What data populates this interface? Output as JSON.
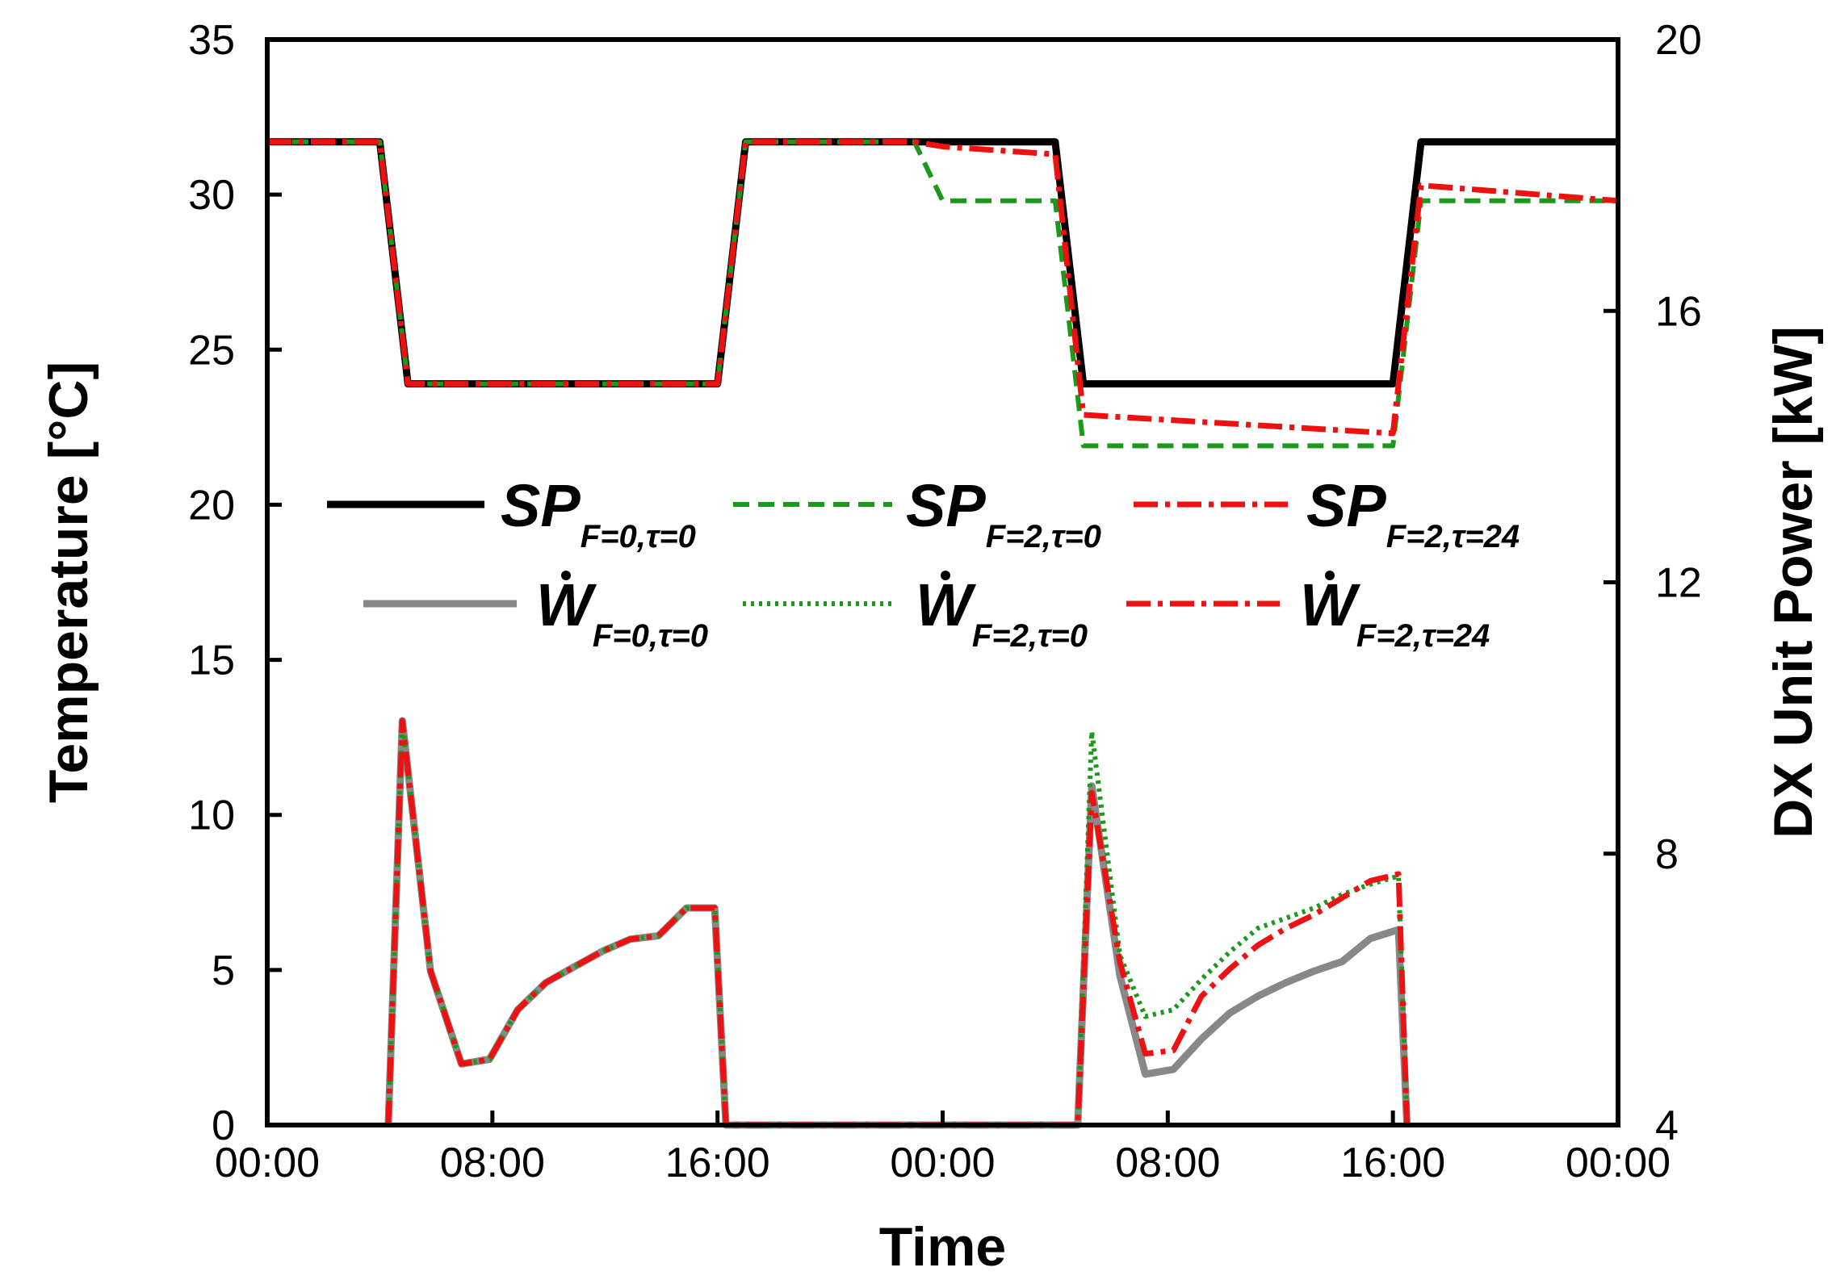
{
  "chart_data": {
    "type": "line",
    "xlabel": "Time",
    "ylabel": "Temperature [°C]",
    "y2label": "DX Unit Power [kW]",
    "xlim": [
      0,
      48
    ],
    "ylim": [
      0,
      35
    ],
    "y2lim": [
      4,
      20
    ],
    "x_ticks": [
      0,
      8,
      16,
      24,
      32,
      40,
      48
    ],
    "x_tick_labels": [
      "00:00",
      "08:00",
      "16:00",
      "00:00",
      "08:00",
      "16:00",
      "00:00"
    ],
    "y_ticks": [
      0,
      5,
      10,
      15,
      20,
      25,
      30,
      35
    ],
    "y_tick_labels": [
      "0",
      "5",
      "10",
      "15",
      "20",
      "25",
      "30",
      "35"
    ],
    "y2_ticks": [
      4,
      8,
      12,
      16,
      20
    ],
    "y2_tick_labels": [
      "4",
      "8",
      "12",
      "16",
      "20"
    ],
    "legend": {
      "placement": "center-left, two rows",
      "entries": [
        {
          "series": "sp_f0_t0",
          "main": "SP",
          "sub": "F=0,τ=0"
        },
        {
          "series": "sp_f2_t0",
          "main": "SP",
          "sub": "F=2,τ=0"
        },
        {
          "series": "sp_f2_t24",
          "main": "SP",
          "sub": "F=2,τ=24"
        },
        {
          "series": "w_f0_t0",
          "main": "W",
          "sub": "F=0,τ=0"
        },
        {
          "series": "w_f2_t0",
          "main": "W",
          "sub": "F=2,τ=0"
        },
        {
          "series": "w_f2_t24",
          "main": "W",
          "sub": "F=2,τ=24"
        }
      ]
    },
    "series": [
      {
        "id": "w_f0_t0",
        "name": "W F=0,τ=0",
        "axis": "right",
        "color": "#888888",
        "style": "solid-thick",
        "points": [
          [
            4.3,
            4
          ],
          [
            4.8,
            9.96
          ],
          [
            5.8,
            6.27
          ],
          [
            6.9,
            4.9
          ],
          [
            7.9,
            4.97
          ],
          [
            8.9,
            5.7
          ],
          [
            9.9,
            6.1
          ],
          [
            10.9,
            6.33
          ],
          [
            11.9,
            6.56
          ],
          [
            12.9,
            6.74
          ],
          [
            13.9,
            6.79
          ],
          [
            14.9,
            7.2
          ],
          [
            15.9,
            7.2
          ],
          [
            16.3,
            4
          ],
          [
            28.8,
            4
          ],
          [
            29.3,
            9
          ],
          [
            30.3,
            6.2
          ],
          [
            31.2,
            4.75
          ],
          [
            32.2,
            4.82
          ],
          [
            33.2,
            5.27
          ],
          [
            34.2,
            5.65
          ],
          [
            35.2,
            5.9
          ],
          [
            36.2,
            6.1
          ],
          [
            37.2,
            6.27
          ],
          [
            38.2,
            6.41
          ],
          [
            39.2,
            6.75
          ],
          [
            40.2,
            6.88
          ],
          [
            40.5,
            4
          ]
        ]
      },
      {
        "id": "w_f2_t0",
        "name": "W F=2,τ=0",
        "axis": "right",
        "color": "#1a9a1a",
        "style": "dotted",
        "points": [
          [
            4.3,
            4
          ],
          [
            4.8,
            9.96
          ],
          [
            5.8,
            6.27
          ],
          [
            6.9,
            4.9
          ],
          [
            7.9,
            4.97
          ],
          [
            8.9,
            5.7
          ],
          [
            9.9,
            6.1
          ],
          [
            10.9,
            6.33
          ],
          [
            11.9,
            6.56
          ],
          [
            12.9,
            6.74
          ],
          [
            13.9,
            6.79
          ],
          [
            14.9,
            7.2
          ],
          [
            15.9,
            7.2
          ],
          [
            16.3,
            4
          ],
          [
            28.8,
            4
          ],
          [
            29.3,
            9.8
          ],
          [
            30.3,
            6.5
          ],
          [
            31.2,
            5.6
          ],
          [
            32.2,
            5.7
          ],
          [
            33.2,
            6.15
          ],
          [
            34.2,
            6.55
          ],
          [
            35.2,
            6.9
          ],
          [
            36.2,
            7.05
          ],
          [
            37.2,
            7.2
          ],
          [
            38.2,
            7.4
          ],
          [
            39.2,
            7.55
          ],
          [
            40.2,
            7.67
          ],
          [
            40.5,
            4
          ]
        ]
      },
      {
        "id": "w_f2_t24",
        "name": "W F=2,τ=24",
        "axis": "right",
        "color": "#ee1111",
        "style": "dash-dot",
        "points": [
          [
            4.3,
            4
          ],
          [
            4.8,
            9.96
          ],
          [
            5.8,
            6.27
          ],
          [
            6.9,
            4.9
          ],
          [
            7.9,
            4.97
          ],
          [
            8.9,
            5.7
          ],
          [
            9.9,
            6.1
          ],
          [
            10.9,
            6.33
          ],
          [
            11.9,
            6.56
          ],
          [
            12.9,
            6.74
          ],
          [
            13.9,
            6.79
          ],
          [
            14.9,
            7.2
          ],
          [
            15.9,
            7.2
          ],
          [
            16.3,
            4
          ],
          [
            28.8,
            4
          ],
          [
            29.3,
            8.9
          ],
          [
            30.3,
            6.4
          ],
          [
            31.2,
            5.05
          ],
          [
            32.2,
            5.1
          ],
          [
            33.2,
            5.9
          ],
          [
            34.2,
            6.3
          ],
          [
            35.2,
            6.65
          ],
          [
            36.2,
            6.9
          ],
          [
            37.2,
            7.1
          ],
          [
            38.2,
            7.35
          ],
          [
            39.2,
            7.6
          ],
          [
            40.2,
            7.7
          ],
          [
            40.5,
            4
          ]
        ]
      },
      {
        "id": "sp_f0_t0",
        "name": "SP F=0,τ=0",
        "axis": "left",
        "color": "#000000",
        "style": "solid-thick",
        "points": [
          [
            0,
            31.7
          ],
          [
            4,
            31.7
          ],
          [
            5,
            23.9
          ],
          [
            16,
            23.9
          ],
          [
            17,
            31.7
          ],
          [
            28,
            31.7
          ],
          [
            29,
            23.9
          ],
          [
            40,
            23.9
          ],
          [
            41,
            31.7
          ],
          [
            48,
            31.7
          ]
        ]
      },
      {
        "id": "sp_f2_t0",
        "name": "SP F=2,τ=0",
        "axis": "left",
        "color": "#1a9a1a",
        "style": "dashed",
        "points": [
          [
            0,
            31.7
          ],
          [
            4,
            31.7
          ],
          [
            5,
            23.9
          ],
          [
            16,
            23.9
          ],
          [
            17,
            31.7
          ],
          [
            23,
            31.7
          ],
          [
            24,
            29.8
          ],
          [
            28,
            29.8
          ],
          [
            29,
            21.9
          ],
          [
            40,
            21.9
          ],
          [
            41,
            29.8
          ],
          [
            48,
            29.8
          ]
        ]
      },
      {
        "id": "sp_f2_t24",
        "name": "SP F=2,τ=24",
        "axis": "left",
        "color": "#ee1111",
        "style": "dash-dot",
        "points": [
          [
            0,
            31.7
          ],
          [
            4,
            31.7
          ],
          [
            5,
            23.9
          ],
          [
            16,
            23.9
          ],
          [
            17,
            31.7
          ],
          [
            23,
            31.7
          ],
          [
            24,
            31.55
          ],
          [
            28,
            31.3
          ],
          [
            29,
            22.9
          ],
          [
            40,
            22.3
          ],
          [
            41,
            30.3
          ],
          [
            48,
            29.8
          ]
        ]
      }
    ]
  }
}
